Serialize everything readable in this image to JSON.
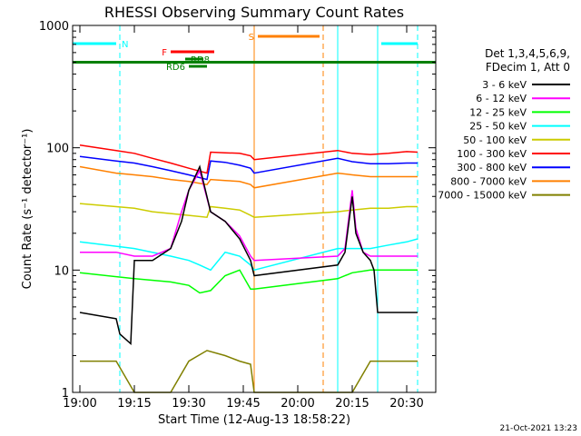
{
  "chart_data": {
    "type": "line",
    "title": "RHESSI Observing Summary Count Rates",
    "xlabel": "Start Time (12-Aug-13 18:58:22)",
    "ylabel": "Count Rate (s⁻¹ detector⁻¹)",
    "y_scale": "log",
    "xlim": [
      "18:58",
      "20:38"
    ],
    "ylim": [
      1,
      1000
    ],
    "x_ticks": [
      "19:00",
      "19:15",
      "19:30",
      "19:45",
      "20:00",
      "20:15",
      "20:30"
    ],
    "y_ticks": [
      "1",
      "10",
      "100",
      "1000"
    ],
    "legend_header": [
      "Det 1,3,4,5,6,9,",
      "FDecim 1, Att 0"
    ],
    "footer_date": "21-Oct-2021 13:23",
    "series": [
      {
        "name": "3 - 6 keV",
        "color": "#000000",
        "x": [
          "19:00",
          "19:10",
          "19:11",
          "19:14",
          "19:15",
          "19:20",
          "19:25",
          "19:28",
          "19:30",
          "19:33",
          "19:36",
          "19:40",
          "19:44",
          "19:47",
          "19:48",
          "20:11",
          "20:13",
          "20:15",
          "20:16",
          "20:18",
          "20:20",
          "20:21",
          "20:22",
          "20:25",
          "20:30",
          "20:33"
        ],
        "y": [
          4.5,
          4.0,
          3.0,
          2.5,
          12,
          12,
          15,
          25,
          45,
          70,
          30,
          25,
          18,
          12,
          9,
          11,
          14,
          40,
          20,
          14,
          12,
          10,
          4.5,
          4.5,
          4.5,
          4.5
        ]
      },
      {
        "name": "6 - 12 keV",
        "color": "#ff00ff",
        "x": [
          "19:00",
          "19:10",
          "19:15",
          "19:20",
          "19:25",
          "19:28",
          "19:30",
          "19:33",
          "19:36",
          "19:40",
          "19:44",
          "19:47",
          "19:48",
          "20:11",
          "20:13",
          "20:15",
          "20:16",
          "20:18",
          "20:20",
          "20:25",
          "20:30",
          "20:33"
        ],
        "y": [
          14,
          14,
          13,
          13,
          15,
          30,
          45,
          65,
          30,
          25,
          19,
          13,
          12,
          13,
          15,
          45,
          22,
          14,
          13,
          13,
          13,
          13
        ]
      },
      {
        "name": "12 - 25 keV",
        "color": "#00ff00",
        "x": [
          "19:00",
          "19:15",
          "19:25",
          "19:30",
          "19:33",
          "19:36",
          "19:40",
          "19:44",
          "19:47",
          "19:48",
          "20:11",
          "20:15",
          "20:20",
          "20:25",
          "20:30",
          "20:33"
        ],
        "y": [
          9.5,
          8.5,
          8.0,
          7.5,
          6.5,
          6.8,
          9,
          10,
          7.0,
          7.0,
          8.5,
          9.5,
          10,
          10,
          10,
          10
        ]
      },
      {
        "name": "25 - 50 keV",
        "color": "#00ffff",
        "x": [
          "19:00",
          "19:15",
          "19:25",
          "19:30",
          "19:33",
          "19:36",
          "19:40",
          "19:44",
          "19:47",
          "19:48",
          "20:11",
          "20:15",
          "20:20",
          "20:25",
          "20:30",
          "20:33"
        ],
        "y": [
          17,
          15,
          13,
          12,
          11,
          10,
          14,
          13,
          11,
          10,
          15,
          15,
          15,
          16,
          17,
          18
        ]
      },
      {
        "name": "50 - 100 keV",
        "color": "#cccc00",
        "x": [
          "19:00",
          "19:10",
          "19:15",
          "19:20",
          "19:25",
          "19:30",
          "19:35",
          "19:36",
          "19:40",
          "19:44",
          "19:47",
          "19:48",
          "20:11",
          "20:15",
          "20:20",
          "20:25",
          "20:30",
          "20:33"
        ],
        "y": [
          35,
          33,
          32,
          30,
          29,
          28,
          27,
          33,
          32,
          31,
          28,
          27,
          30,
          31,
          32,
          32,
          33,
          33
        ]
      },
      {
        "name": "100 - 300 keV",
        "color": "#ff0000",
        "x": [
          "19:00",
          "19:10",
          "19:15",
          "19:20",
          "19:25",
          "19:30",
          "19:35",
          "19:36",
          "19:40",
          "19:44",
          "19:47",
          "19:48",
          "20:11",
          "20:15",
          "20:20",
          "20:25",
          "20:30",
          "20:33"
        ],
        "y": [
          105,
          95,
          90,
          82,
          75,
          68,
          62,
          92,
          91,
          90,
          86,
          80,
          95,
          90,
          88,
          90,
          93,
          92
        ]
      },
      {
        "name": "300 - 800 keV",
        "color": "#0000ff",
        "x": [
          "19:00",
          "19:10",
          "19:15",
          "19:20",
          "19:25",
          "19:30",
          "19:35",
          "19:36",
          "19:40",
          "19:44",
          "19:47",
          "19:48",
          "20:11",
          "20:15",
          "20:20",
          "20:25",
          "20:30",
          "20:33"
        ],
        "y": [
          85,
          78,
          75,
          70,
          65,
          60,
          55,
          78,
          76,
          72,
          68,
          62,
          82,
          77,
          74,
          74,
          75,
          75
        ]
      },
      {
        "name": "800 - 7000 keV",
        "color": "#ff8000",
        "x": [
          "19:00",
          "19:10",
          "19:15",
          "19:20",
          "19:25",
          "19:30",
          "19:35",
          "19:36",
          "19:40",
          "19:44",
          "19:47",
          "19:48",
          "20:11",
          "20:15",
          "20:20",
          "20:25",
          "20:30",
          "20:33"
        ],
        "y": [
          70,
          62,
          60,
          58,
          55,
          53,
          50,
          55,
          54,
          53,
          50,
          47,
          62,
          60,
          58,
          58,
          58,
          58
        ]
      },
      {
        "name": "7000 - 15000 keV",
        "color": "#808000",
        "x": [
          "19:00",
          "19:10",
          "19:15",
          "19:20",
          "19:25",
          "19:30",
          "19:35",
          "19:40",
          "19:44",
          "19:47",
          "19:48",
          "20:11",
          "20:15",
          "20:20",
          "20:25",
          "20:30",
          "20:33"
        ],
        "y": [
          1.8,
          1.8,
          1.0,
          1.0,
          1.0,
          1.8,
          2.2,
          2.0,
          1.8,
          1.7,
          1.0,
          1.0,
          1.0,
          1.8,
          1.8,
          1.8,
          1.8
        ]
      }
    ],
    "annotations": [
      {
        "label": "N",
        "color": "#00ffff",
        "segments": [
          [
            "18:58",
            "19:10"
          ],
          [
            "20:23",
            "20:33"
          ]
        ]
      },
      {
        "label": "S",
        "color": "#ff8000",
        "segments": [
          [
            "19:49",
            "20:06"
          ]
        ]
      },
      {
        "label": "F",
        "color": "#ff0000",
        "segments": [
          [
            "19:25",
            "19:37"
          ]
        ]
      },
      {
        "label": "RD8",
        "color": "#008000",
        "segments": [
          [
            "19:29",
            "19:34"
          ]
        ]
      },
      {
        "label": "RD6",
        "color": "#008000",
        "segments": [
          [
            "19:30",
            "19:35"
          ]
        ]
      }
    ],
    "full_span_line": {
      "color": "#008000",
      "y": 500
    },
    "vertical_markers": [
      {
        "time": "18:58",
        "color": "#00ffff",
        "style": "solid"
      },
      {
        "time": "19:11",
        "color": "#00ffff",
        "style": "dashed"
      },
      {
        "time": "19:48",
        "color": "#ff8000",
        "style": "solid"
      },
      {
        "time": "20:07",
        "color": "#ff8000",
        "style": "dashed"
      },
      {
        "time": "20:11",
        "color": "#00ffff",
        "style": "solid"
      },
      {
        "time": "20:22",
        "color": "#00ffff",
        "style": "solid"
      },
      {
        "time": "20:33",
        "color": "#00ffff",
        "style": "dashed"
      }
    ],
    "grid": false,
    "legend_position": "right"
  }
}
